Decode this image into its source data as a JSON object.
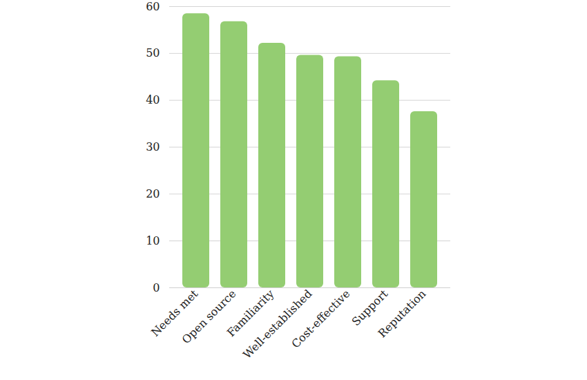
{
  "chart_data": {
    "type": "bar",
    "categories": [
      "Needs met",
      "Open source",
      "Familiarity",
      "Well-established",
      "Cost-effective",
      "Support",
      "Reputation"
    ],
    "values": [
      58.5,
      56.8,
      52.2,
      49.6,
      49.3,
      44.2,
      37.6
    ],
    "color": "#94cd72",
    "ylim": [
      0,
      60
    ],
    "yticks": [
      0,
      10,
      20,
      30,
      40,
      50,
      60
    ],
    "grid": true
  }
}
